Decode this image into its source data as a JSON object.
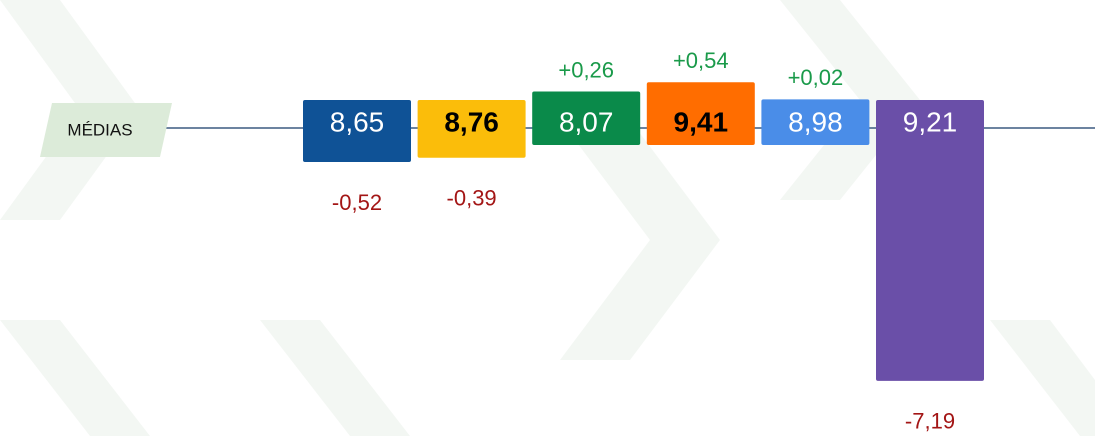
{
  "chart_data": {
    "type": "deviation_bar",
    "baseline_label": "MÉDIAS",
    "categories": [
      null,
      null,
      null,
      null,
      null,
      null
    ],
    "bar_labels": [
      "8,65",
      "8,76",
      "8,07",
      "9,41",
      "8,98",
      "9,21"
    ],
    "values": [
      -0.52,
      -0.39,
      0.26,
      0.54,
      0.02,
      -7.19
    ],
    "value_labels": [
      "-0,52",
      "-0,39",
      "+0,26",
      "+0,54",
      "+0,02",
      "-7,19"
    ],
    "colors": [
      "#0f5296",
      "#fbbd0a",
      "#0a8a4a",
      "#ff6d00",
      "#4a8de8",
      "#6a4fa8"
    ],
    "label_colors": [
      "#ffffff",
      "#000000",
      "#ffffff",
      "#000000",
      "#ffffff",
      "#ffffff"
    ],
    "positive_color": "#1a9a4a",
    "negative_color": "#a31515"
  }
}
